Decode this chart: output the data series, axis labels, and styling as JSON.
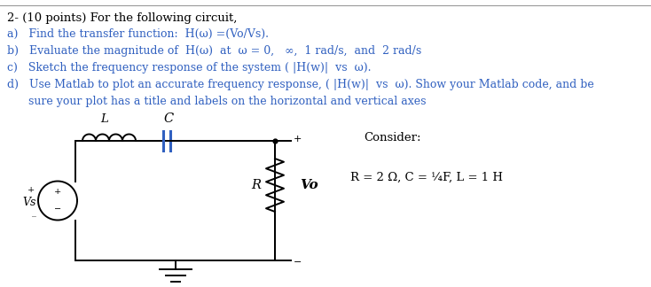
{
  "background_color": "#ffffff",
  "title_line": "2- (10 points) For the following circuit,",
  "item_a": "a)   Find the transfer function:  H(ω) =(Vo/Vs).",
  "item_b": "b)   Evaluate the magnitude of  H(ω)  at  ω = 0,   ∞,  1 rad/s,  and  2 rad/s",
  "item_c": "c)   Sketch the frequency response of the system ( |H(w)|  vs  ω).",
  "item_d1": "d)   Use Matlab to plot an accurate frequency response, ( |H(w)|  vs  ω). Show your Matlab code, and be",
  "item_d2": "      sure your plot has a title and labels on the horizontal and vertical axes",
  "consider_text": "Consider:",
  "values_text": "R = 2 Ω, C = ¼F, L = 1 H",
  "text_color": "#000000",
  "blue_color": "#3060c0",
  "circuit_color": "#000000",
  "capacitor_color": "#3060c0",
  "title_fontsize": 9.5,
  "item_fontsize": 9.0,
  "circuit_fontsize": 9.5,
  "consider_fontsize": 9.5
}
